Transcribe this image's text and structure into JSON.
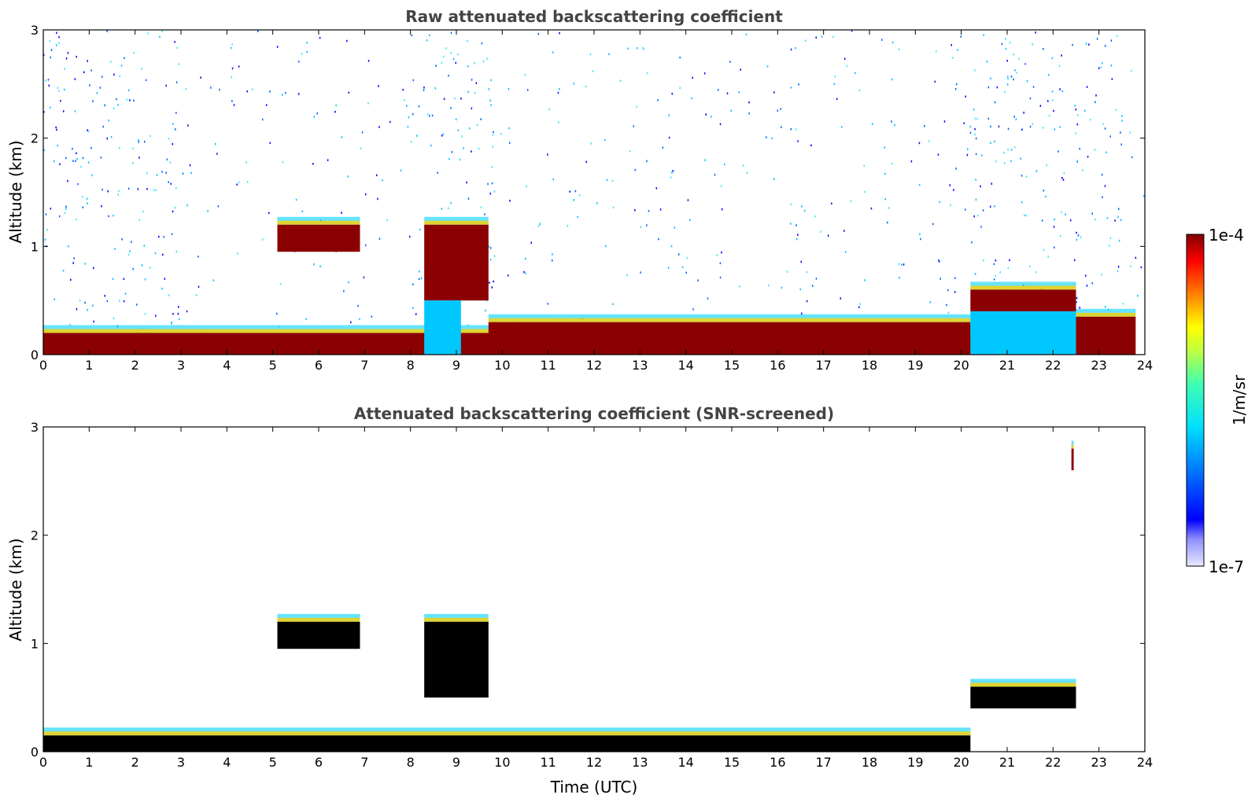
{
  "chart_data": [
    {
      "type": "heatmap",
      "title": "Raw attenuated backscattering coefficient",
      "xlabel": "",
      "ylabel": "Altitude (km)",
      "xlim": [
        0,
        24
      ],
      "ylim": [
        0,
        3
      ],
      "x_ticks": [
        "0",
        "1",
        "2",
        "3",
        "4",
        "5",
        "6",
        "7",
        "8",
        "9",
        "10",
        "11",
        "12",
        "13",
        "14",
        "15",
        "16",
        "17",
        "18",
        "19",
        "20",
        "21",
        "22",
        "23",
        "24"
      ],
      "y_ticks": [
        "0",
        "1",
        "2",
        "3"
      ],
      "features": [
        {
          "x": [
            0,
            20.2
          ],
          "y": [
            0,
            0.2
          ],
          "level": "high"
        },
        {
          "x": [
            5.1,
            6.9
          ],
          "y": [
            0.95,
            1.2
          ],
          "level": "high"
        },
        {
          "x": [
            8.3,
            9.7
          ],
          "y": [
            0.5,
            1.2
          ],
          "level": "high"
        },
        {
          "x": [
            8.3,
            9.1
          ],
          "y": [
            0,
            0.5
          ],
          "level": "mid"
        },
        {
          "x": [
            9.7,
            20.2
          ],
          "y": [
            0,
            0.3
          ],
          "level": "high"
        },
        {
          "x": [
            20.2,
            22.5
          ],
          "y": [
            0.4,
            0.6
          ],
          "level": "high"
        },
        {
          "x": [
            20.2,
            22.5
          ],
          "y": [
            0,
            0.4
          ],
          "level": "mid"
        },
        {
          "x": [
            22.5,
            23.8
          ],
          "y": [
            0,
            0.35
          ],
          "level": "high"
        }
      ]
    },
    {
      "type": "heatmap",
      "title": "Attenuated backscattering coefficient (SNR-screened)",
      "xlabel": "Time (UTC)",
      "ylabel": "Altitude (km)",
      "xlim": [
        0,
        24
      ],
      "ylim": [
        0,
        3
      ],
      "x_ticks": [
        "0",
        "1",
        "2",
        "3",
        "4",
        "5",
        "6",
        "7",
        "8",
        "9",
        "10",
        "11",
        "12",
        "13",
        "14",
        "15",
        "16",
        "17",
        "18",
        "19",
        "20",
        "21",
        "22",
        "23",
        "24"
      ],
      "y_ticks": [
        "0",
        "1",
        "2",
        "3"
      ],
      "features": [
        {
          "x": [
            0,
            20.2
          ],
          "y": [
            0,
            0.15
          ],
          "level": "saturated"
        },
        {
          "x": [
            5.1,
            6.9
          ],
          "y": [
            0.95,
            1.2
          ],
          "level": "saturated"
        },
        {
          "x": [
            8.3,
            9.7
          ],
          "y": [
            0.5,
            1.2
          ],
          "level": "saturated"
        },
        {
          "x": [
            20.2,
            22.5
          ],
          "y": [
            0.4,
            0.6
          ],
          "level": "saturated"
        },
        {
          "x": [
            22.4,
            22.45
          ],
          "y": [
            2.6,
            2.8
          ],
          "level": "high"
        }
      ]
    }
  ],
  "colorbar": {
    "label": "1/m/sr",
    "max_label": "1e-4",
    "min_label": "1e-7",
    "colormap": "jet"
  }
}
